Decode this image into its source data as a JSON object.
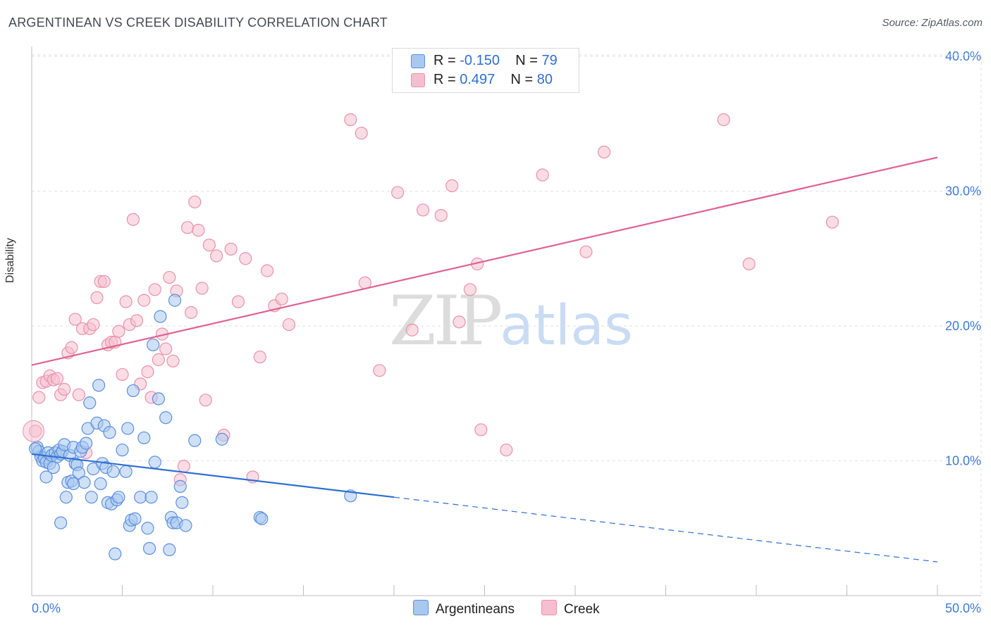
{
  "title": "ARGENTINEAN VS CREEK DISABILITY CORRELATION CHART",
  "source": "Source: ZipAtlas.com",
  "watermark": {
    "zip": "ZIP",
    "atlas": "atlas"
  },
  "legend": {
    "rows": [
      {
        "r_label": "R =",
        "r_value": "-0.150",
        "n_label": "N =",
        "n_value": "79"
      },
      {
        "r_label": "R =",
        "r_value": " 0.497",
        "n_label": "N =",
        "n_value": "80"
      }
    ]
  },
  "bottom_legend": [
    "Argentineans",
    "Creek"
  ],
  "colors": {
    "blue_fill": "#a9c8f0",
    "blue_stroke": "#5b8fdc",
    "blue_line": "#2f6fd1",
    "pink_fill": "#f6bfd0",
    "pink_stroke": "#e892ad",
    "pink_line": "#e0628f",
    "axis_text": "#3f7ad6",
    "grid": "#e2e2e2"
  },
  "chart_data": {
    "type": "scatter",
    "title": "ARGENTINEAN VS CREEK DISABILITY CORRELATION CHART",
    "xlabel": "",
    "ylabel": "Disability",
    "xlim": [
      0,
      50
    ],
    "ylim": [
      0,
      40
    ],
    "x_tick_labels": [
      "0.0%",
      "50.0%"
    ],
    "y_ticks": [
      10,
      20,
      30,
      40
    ],
    "y_tick_labels": [
      "10.0%",
      "20.0%",
      "30.0%",
      "40.0%"
    ],
    "series": [
      {
        "name": "Argentineans",
        "r": -0.15,
        "n": 79,
        "trend": {
          "x0": 0,
          "y0": 10.5,
          "x1": 20,
          "y1": 7.3,
          "dash_x1": 50,
          "dash_y1": 2.5
        },
        "points": [
          [
            0.3,
            11.0
          ],
          [
            0.4,
            10.7
          ],
          [
            0.5,
            10.3
          ],
          [
            0.6,
            10.0
          ],
          [
            0.7,
            10.2
          ],
          [
            0.8,
            9.9
          ],
          [
            0.9,
            10.6
          ],
          [
            1.0,
            9.8
          ],
          [
            1.1,
            10.4
          ],
          [
            1.2,
            9.5
          ],
          [
            1.3,
            10.6
          ],
          [
            1.4,
            10.3
          ],
          [
            1.5,
            10.8
          ],
          [
            1.6,
            10.5
          ],
          [
            1.7,
            10.7
          ],
          [
            1.8,
            11.2
          ],
          [
            1.9,
            7.3
          ],
          [
            2.0,
            8.4
          ],
          [
            2.1,
            10.4
          ],
          [
            2.2,
            8.5
          ],
          [
            2.3,
            11.0
          ],
          [
            2.4,
            9.8
          ],
          [
            2.5,
            9.7
          ],
          [
            2.6,
            9.1
          ],
          [
            2.7,
            10.7
          ],
          [
            2.8,
            11.0
          ],
          [
            2.9,
            8.4
          ],
          [
            3.0,
            11.3
          ],
          [
            3.1,
            12.4
          ],
          [
            3.2,
            14.3
          ],
          [
            3.3,
            7.3
          ],
          [
            3.4,
            9.4
          ],
          [
            3.6,
            12.8
          ],
          [
            3.7,
            15.6
          ],
          [
            3.8,
            8.3
          ],
          [
            3.9,
            9.8
          ],
          [
            4.0,
            12.6
          ],
          [
            4.1,
            9.5
          ],
          [
            4.2,
            6.9
          ],
          [
            4.3,
            12.1
          ],
          [
            4.4,
            6.8
          ],
          [
            4.5,
            9.2
          ],
          [
            4.6,
            3.1
          ],
          [
            4.7,
            7.1
          ],
          [
            4.8,
            7.3
          ],
          [
            5.0,
            10.8
          ],
          [
            5.2,
            9.2
          ],
          [
            5.3,
            12.4
          ],
          [
            5.4,
            5.2
          ],
          [
            5.5,
            5.6
          ],
          [
            5.6,
            15.2
          ],
          [
            5.7,
            5.7
          ],
          [
            6.0,
            7.3
          ],
          [
            6.2,
            11.7
          ],
          [
            6.4,
            5.0
          ],
          [
            6.5,
            3.5
          ],
          [
            6.6,
            7.3
          ],
          [
            6.7,
            18.6
          ],
          [
            6.8,
            9.9
          ],
          [
            7.0,
            14.6
          ],
          [
            7.1,
            20.7
          ],
          [
            7.4,
            13.2
          ],
          [
            7.6,
            3.4
          ],
          [
            7.7,
            5.8
          ],
          [
            7.8,
            5.4
          ],
          [
            7.9,
            21.9
          ],
          [
            8.0,
            5.4
          ],
          [
            8.2,
            8.1
          ],
          [
            8.3,
            6.9
          ],
          [
            8.5,
            5.2
          ],
          [
            9.0,
            11.5
          ],
          [
            10.5,
            11.6
          ],
          [
            12.6,
            5.8
          ],
          [
            12.7,
            5.7
          ],
          [
            17.6,
            7.4
          ],
          [
            0.2,
            10.9
          ],
          [
            0.8,
            8.8
          ],
          [
            1.6,
            5.4
          ],
          [
            2.3,
            8.3
          ]
        ]
      },
      {
        "name": "Creek",
        "r": 0.497,
        "n": 80,
        "trend": {
          "x0": 0,
          "y0": 17.1,
          "x1": 50,
          "y1": 32.5
        },
        "points": [
          [
            0.2,
            12.2
          ],
          [
            0.4,
            14.7
          ],
          [
            0.6,
            15.8
          ],
          [
            0.8,
            15.9
          ],
          [
            1.0,
            16.3
          ],
          [
            1.2,
            16.0
          ],
          [
            1.4,
            16.1
          ],
          [
            1.6,
            14.9
          ],
          [
            1.8,
            15.3
          ],
          [
            2.0,
            18.0
          ],
          [
            2.2,
            18.4
          ],
          [
            2.4,
            20.5
          ],
          [
            2.6,
            14.9
          ],
          [
            2.8,
            19.8
          ],
          [
            3.0,
            10.6
          ],
          [
            3.2,
            19.8
          ],
          [
            3.4,
            20.1
          ],
          [
            3.6,
            22.1
          ],
          [
            3.8,
            23.3
          ],
          [
            4.0,
            23.3
          ],
          [
            4.2,
            18.6
          ],
          [
            4.4,
            18.8
          ],
          [
            4.6,
            18.8
          ],
          [
            4.8,
            19.6
          ],
          [
            5.0,
            16.4
          ],
          [
            5.2,
            21.8
          ],
          [
            5.4,
            20.1
          ],
          [
            5.6,
            27.9
          ],
          [
            5.8,
            20.4
          ],
          [
            6.0,
            15.7
          ],
          [
            6.2,
            21.9
          ],
          [
            6.4,
            16.6
          ],
          [
            6.6,
            14.7
          ],
          [
            6.8,
            22.7
          ],
          [
            7.0,
            17.5
          ],
          [
            7.2,
            19.4
          ],
          [
            7.4,
            18.3
          ],
          [
            7.6,
            23.6
          ],
          [
            7.8,
            17.4
          ],
          [
            8.0,
            22.6
          ],
          [
            8.2,
            8.6
          ],
          [
            8.4,
            9.6
          ],
          [
            8.6,
            27.3
          ],
          [
            8.8,
            21.0
          ],
          [
            9.0,
            29.2
          ],
          [
            9.2,
            27.1
          ],
          [
            9.4,
            22.8
          ],
          [
            9.6,
            14.5
          ],
          [
            9.8,
            26.0
          ],
          [
            10.2,
            25.2
          ],
          [
            10.6,
            11.9
          ],
          [
            11.0,
            25.7
          ],
          [
            11.4,
            21.8
          ],
          [
            11.8,
            25.0
          ],
          [
            12.2,
            8.8
          ],
          [
            12.6,
            17.7
          ],
          [
            13.0,
            24.1
          ],
          [
            13.4,
            21.5
          ],
          [
            13.8,
            22.0
          ],
          [
            14.2,
            20.1
          ],
          [
            17.6,
            35.3
          ],
          [
            18.2,
            34.3
          ],
          [
            18.4,
            23.2
          ],
          [
            19.2,
            16.7
          ],
          [
            20.2,
            29.9
          ],
          [
            21.0,
            19.7
          ],
          [
            21.6,
            28.6
          ],
          [
            22.6,
            28.2
          ],
          [
            23.2,
            30.4
          ],
          [
            23.6,
            20.3
          ],
          [
            24.2,
            22.7
          ],
          [
            24.6,
            24.6
          ],
          [
            24.8,
            12.3
          ],
          [
            26.2,
            10.8
          ],
          [
            28.2,
            31.2
          ],
          [
            30.6,
            25.5
          ],
          [
            31.6,
            32.9
          ],
          [
            38.2,
            35.3
          ],
          [
            39.6,
            24.6
          ],
          [
            44.2,
            27.7
          ]
        ]
      }
    ]
  }
}
